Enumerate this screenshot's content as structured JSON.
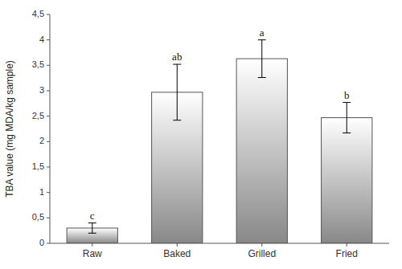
{
  "chart_data": {
    "type": "bar",
    "categories": [
      "Raw",
      "Baked",
      "Grilled",
      "Fried"
    ],
    "values": [
      0.3,
      2.97,
      3.63,
      2.47
    ],
    "errors": [
      0.1,
      0.55,
      0.37,
      0.3
    ],
    "annotations": [
      "c",
      "ab",
      "a",
      "b"
    ],
    "ylabel": "TBA value (mg MDA/kg sample)",
    "ylim": [
      0,
      4.5
    ],
    "yticks": [
      0,
      {
        "value": 0.5,
        "label": "0,5"
      },
      1,
      {
        "value": 1.5,
        "label": "1,5"
      },
      2,
      {
        "value": 2.5,
        "label": "2,5"
      },
      3,
      {
        "value": 3.5,
        "label": "3,5"
      },
      4,
      {
        "value": 4.5,
        "label": "4,5"
      }
    ],
    "color": "#888888",
    "grid": false
  }
}
